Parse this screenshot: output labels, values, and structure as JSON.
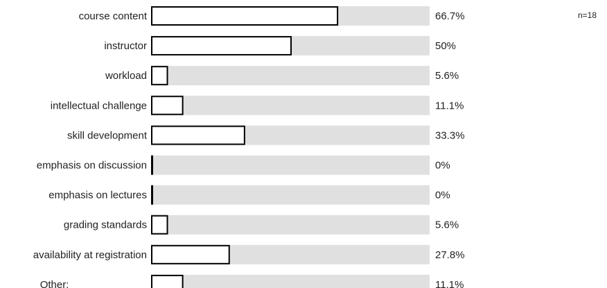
{
  "chart_data": {
    "type": "bar",
    "orientation": "horizontal",
    "categories": [
      "course content",
      "instructor",
      "workload",
      "intellectual challenge",
      "skill development",
      "emphasis on discussion",
      "emphasis on lectures",
      "grading standards",
      "availability at registration",
      "Other: _____________"
    ],
    "values": [
      66.7,
      50,
      5.6,
      11.1,
      33.3,
      0,
      0,
      5.6,
      27.8,
      11.1
    ],
    "value_labels": [
      "66.7%",
      "50%",
      "5.6%",
      "11.1%",
      "33.3%",
      "0%",
      "0%",
      "5.6%",
      "27.8%",
      "11.1%"
    ],
    "xlim": [
      0,
      100
    ],
    "note": "n=18",
    "colors": {
      "track": "#e0e0e0",
      "bar_fill": "#ffffff",
      "bar_stroke": "#000000",
      "text": "#222222"
    }
  }
}
